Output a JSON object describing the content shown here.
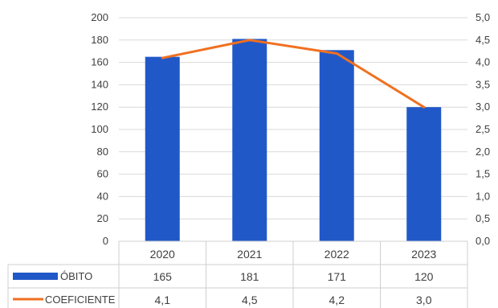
{
  "chart_data": {
    "type": "bar+line",
    "categories": [
      "2020",
      "2021",
      "2022",
      "2023"
    ],
    "series": [
      {
        "name": "ÓBITO",
        "type": "bar",
        "axis": "left",
        "values": [
          165,
          181,
          171,
          120
        ],
        "value_labels": [
          "165",
          "181",
          "171",
          "120"
        ]
      },
      {
        "name": "COEFICIENTE",
        "type": "line",
        "axis": "right",
        "values": [
          4.1,
          4.5,
          4.2,
          3.0
        ],
        "value_labels": [
          "4,1",
          "4,5",
          "4,2",
          "3,0"
        ]
      }
    ],
    "y_left": {
      "min": 0,
      "max": 200,
      "ticks": [
        0,
        20,
        40,
        60,
        80,
        100,
        120,
        140,
        160,
        180,
        200
      ],
      "tick_labels": [
        "0",
        "20",
        "40",
        "60",
        "80",
        "100",
        "120",
        "140",
        "160",
        "180",
        "200"
      ]
    },
    "y_right": {
      "min": 0,
      "max": 5,
      "ticks": [
        0,
        0.5,
        1,
        1.5,
        2,
        2.5,
        3,
        3.5,
        4,
        4.5,
        5
      ],
      "tick_labels": [
        "0,0",
        "0,5",
        "1,0",
        "1,5",
        "2,0",
        "2,5",
        "3,0",
        "3,5",
        "4,0",
        "4,5",
        "5,0"
      ]
    },
    "grid": true,
    "legend": "data-table-below",
    "colors": {
      "bar": "#2158c8",
      "line": "#f07020",
      "grid": "#d9d9d9",
      "text": "#404040",
      "table_border": "#cfcfcf"
    }
  }
}
